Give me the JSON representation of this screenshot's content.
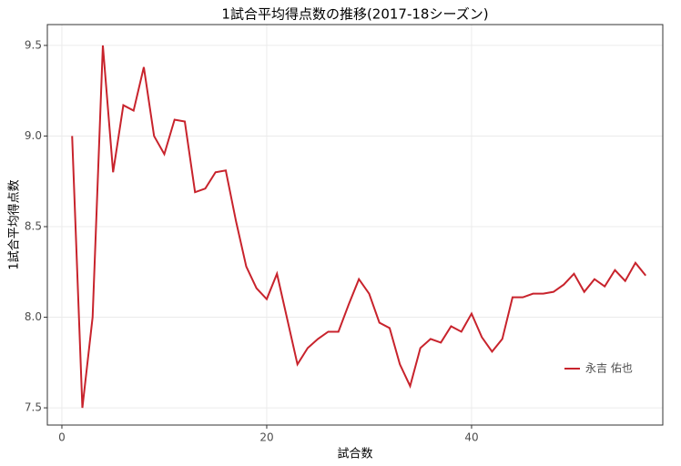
{
  "chart_data": {
    "type": "line",
    "title": "1試合平均得点数の推移(2017-18シーズン)",
    "x_label": "試合数",
    "y_label": "1試合平均得点数",
    "x": [
      1,
      2,
      3,
      4,
      5,
      6,
      7,
      8,
      9,
      10,
      11,
      12,
      13,
      14,
      15,
      16,
      17,
      18,
      19,
      20,
      21,
      22,
      23,
      24,
      25,
      26,
      27,
      28,
      29,
      30,
      31,
      32,
      33,
      34,
      35,
      36,
      37,
      38,
      39,
      40,
      41,
      42,
      43,
      44,
      45,
      46,
      47,
      48,
      49,
      50,
      51,
      52,
      53,
      54,
      55,
      56,
      57
    ],
    "series": [
      {
        "name": "永吉 佑也",
        "color": "#c8232c",
        "values": [
          9.0,
          7.5,
          8.0,
          9.5,
          8.8,
          9.17,
          9.14,
          9.38,
          9.0,
          8.9,
          9.09,
          9.08,
          8.69,
          8.71,
          8.8,
          8.81,
          8.53,
          8.28,
          8.16,
          8.1,
          8.24,
          7.99,
          7.74,
          7.83,
          7.88,
          7.92,
          7.92,
          8.07,
          8.21,
          8.13,
          7.97,
          7.94,
          7.74,
          7.62,
          7.83,
          7.88,
          7.86,
          7.95,
          7.92,
          8.02,
          7.89,
          7.81,
          7.88,
          8.11,
          8.11,
          8.13,
          8.13,
          8.14,
          8.18,
          8.24,
          8.14,
          8.21,
          8.17,
          8.26,
          8.2,
          8.3,
          8.23
        ]
      }
    ],
    "xlim": [
      -1.42,
      58.67
    ],
    "xticks": [
      0,
      20,
      40
    ],
    "ylim": [
      7.405,
      9.615
    ],
    "yticks": [
      {
        "value": 7.5,
        "label": "7.5"
      },
      {
        "value": 8,
        "label": "8.0"
      },
      {
        "value": 8.5,
        "label": "8.5"
      },
      {
        "value": 9,
        "label": "9.0"
      },
      {
        "value": 9.5,
        "label": "9.5"
      }
    ],
    "grid": true,
    "legend_position": "bottom-right"
  }
}
